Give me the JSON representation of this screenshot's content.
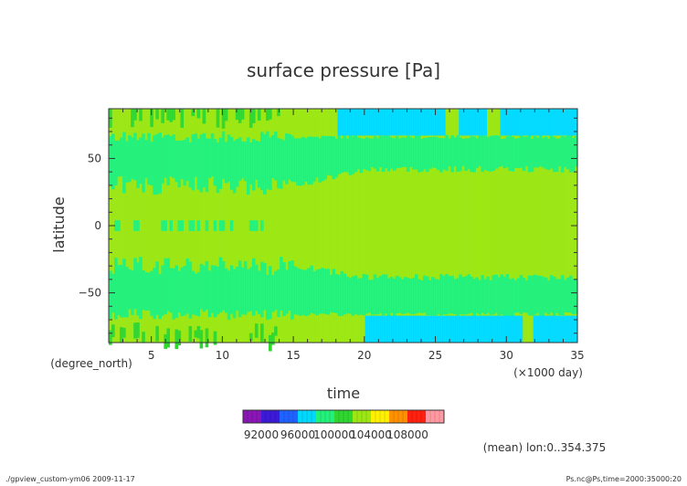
{
  "chart_data": {
    "type": "heatmap",
    "title": "surface pressure [Pa]",
    "xlabel": "time",
    "x_unit": "(×1000 day)",
    "ylabel": "latitude",
    "y_unit": "(degree_north)",
    "xlim": [
      2,
      35
    ],
    "ylim": [
      -87,
      87
    ],
    "xticks": [
      5,
      10,
      15,
      20,
      25,
      30,
      35
    ],
    "yticks": [
      -50,
      0,
      50
    ],
    "colorbar": {
      "levels": [
        90000,
        92000,
        94000,
        96000,
        98000,
        100000,
        102000,
        104000,
        106000,
        108000,
        110000
      ],
      "tick_labels": [
        "92000",
        "96000",
        "100000",
        "104000",
        "108000"
      ],
      "colors": [
        "#8a16b6",
        "#3c1ad8",
        "#1f62ff",
        "#00d9ff",
        "#22f07a",
        "#2fd62f",
        "#9be613",
        "#fff000",
        "#ff9000",
        "#ff2010",
        "#ff9aa2"
      ]
    },
    "regions": [
      {
        "level": "100000-102000",
        "description": "mid-latitude bands",
        "lat_ranges": [
          [
            -65,
            -25
          ],
          [
            25,
            65
          ]
        ]
      },
      {
        "level": "102000-104000",
        "description": "tropics and polar caps",
        "lat_ranges": [
          [
            -25,
            25
          ],
          [
            -87,
            -65
          ],
          [
            65,
            87
          ]
        ]
      },
      {
        "level": "98000-100000",
        "description": "polar low regions",
        "x_ranges": [
          [
            18,
            35
          ],
          [
            20,
            35
          ]
        ],
        "lat_ranges": [
          [
            67,
            87
          ],
          [
            -87,
            -67
          ]
        ]
      }
    ]
  },
  "annotations": {
    "mean_note": "(mean) lon:0..354.375",
    "footer_left": "./gpview_custom-ym06   2009-11-17",
    "footer_right": "Ps.nc@Ps,time=2000:35000:20"
  }
}
